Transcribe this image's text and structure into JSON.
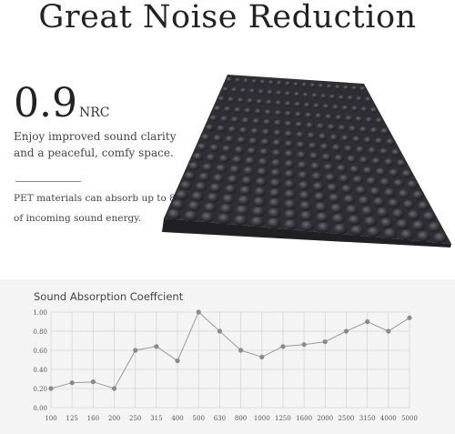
{
  "header": {
    "title": "Great Noise Reduction"
  },
  "nrc": {
    "value": "0.9",
    "unit": "NRC"
  },
  "text": {
    "description1": "Enjoy improved sound clarity and a peaceful, comfy space.",
    "description2": "PET materials can absorb up to 85% of incoming sound energy."
  },
  "colors": {
    "foam": "#2e2e34",
    "line": "#9a9a9a",
    "point": "#8a8a8a",
    "panel": "#f4f4f4"
  },
  "chart_data": {
    "type": "line",
    "title": "Sound Absorption Coeffcient",
    "categories": [
      "100",
      "125",
      "160",
      "200",
      "250",
      "315",
      "400",
      "500",
      "630",
      "800",
      "1000",
      "1250",
      "1600",
      "2000",
      "2500",
      "3150",
      "4000",
      "5000"
    ],
    "values": [
      0.2,
      0.26,
      0.27,
      0.2,
      0.6,
      0.64,
      0.49,
      1.0,
      0.8,
      0.6,
      0.53,
      0.64,
      0.66,
      0.69,
      0.8,
      0.9,
      0.8,
      0.94
    ],
    "ylim": [
      0,
      1
    ],
    "yticks": [
      "0.00",
      "0.20",
      "0.40",
      "0.60",
      "0.80",
      "1.00"
    ],
    "grid": true
  }
}
